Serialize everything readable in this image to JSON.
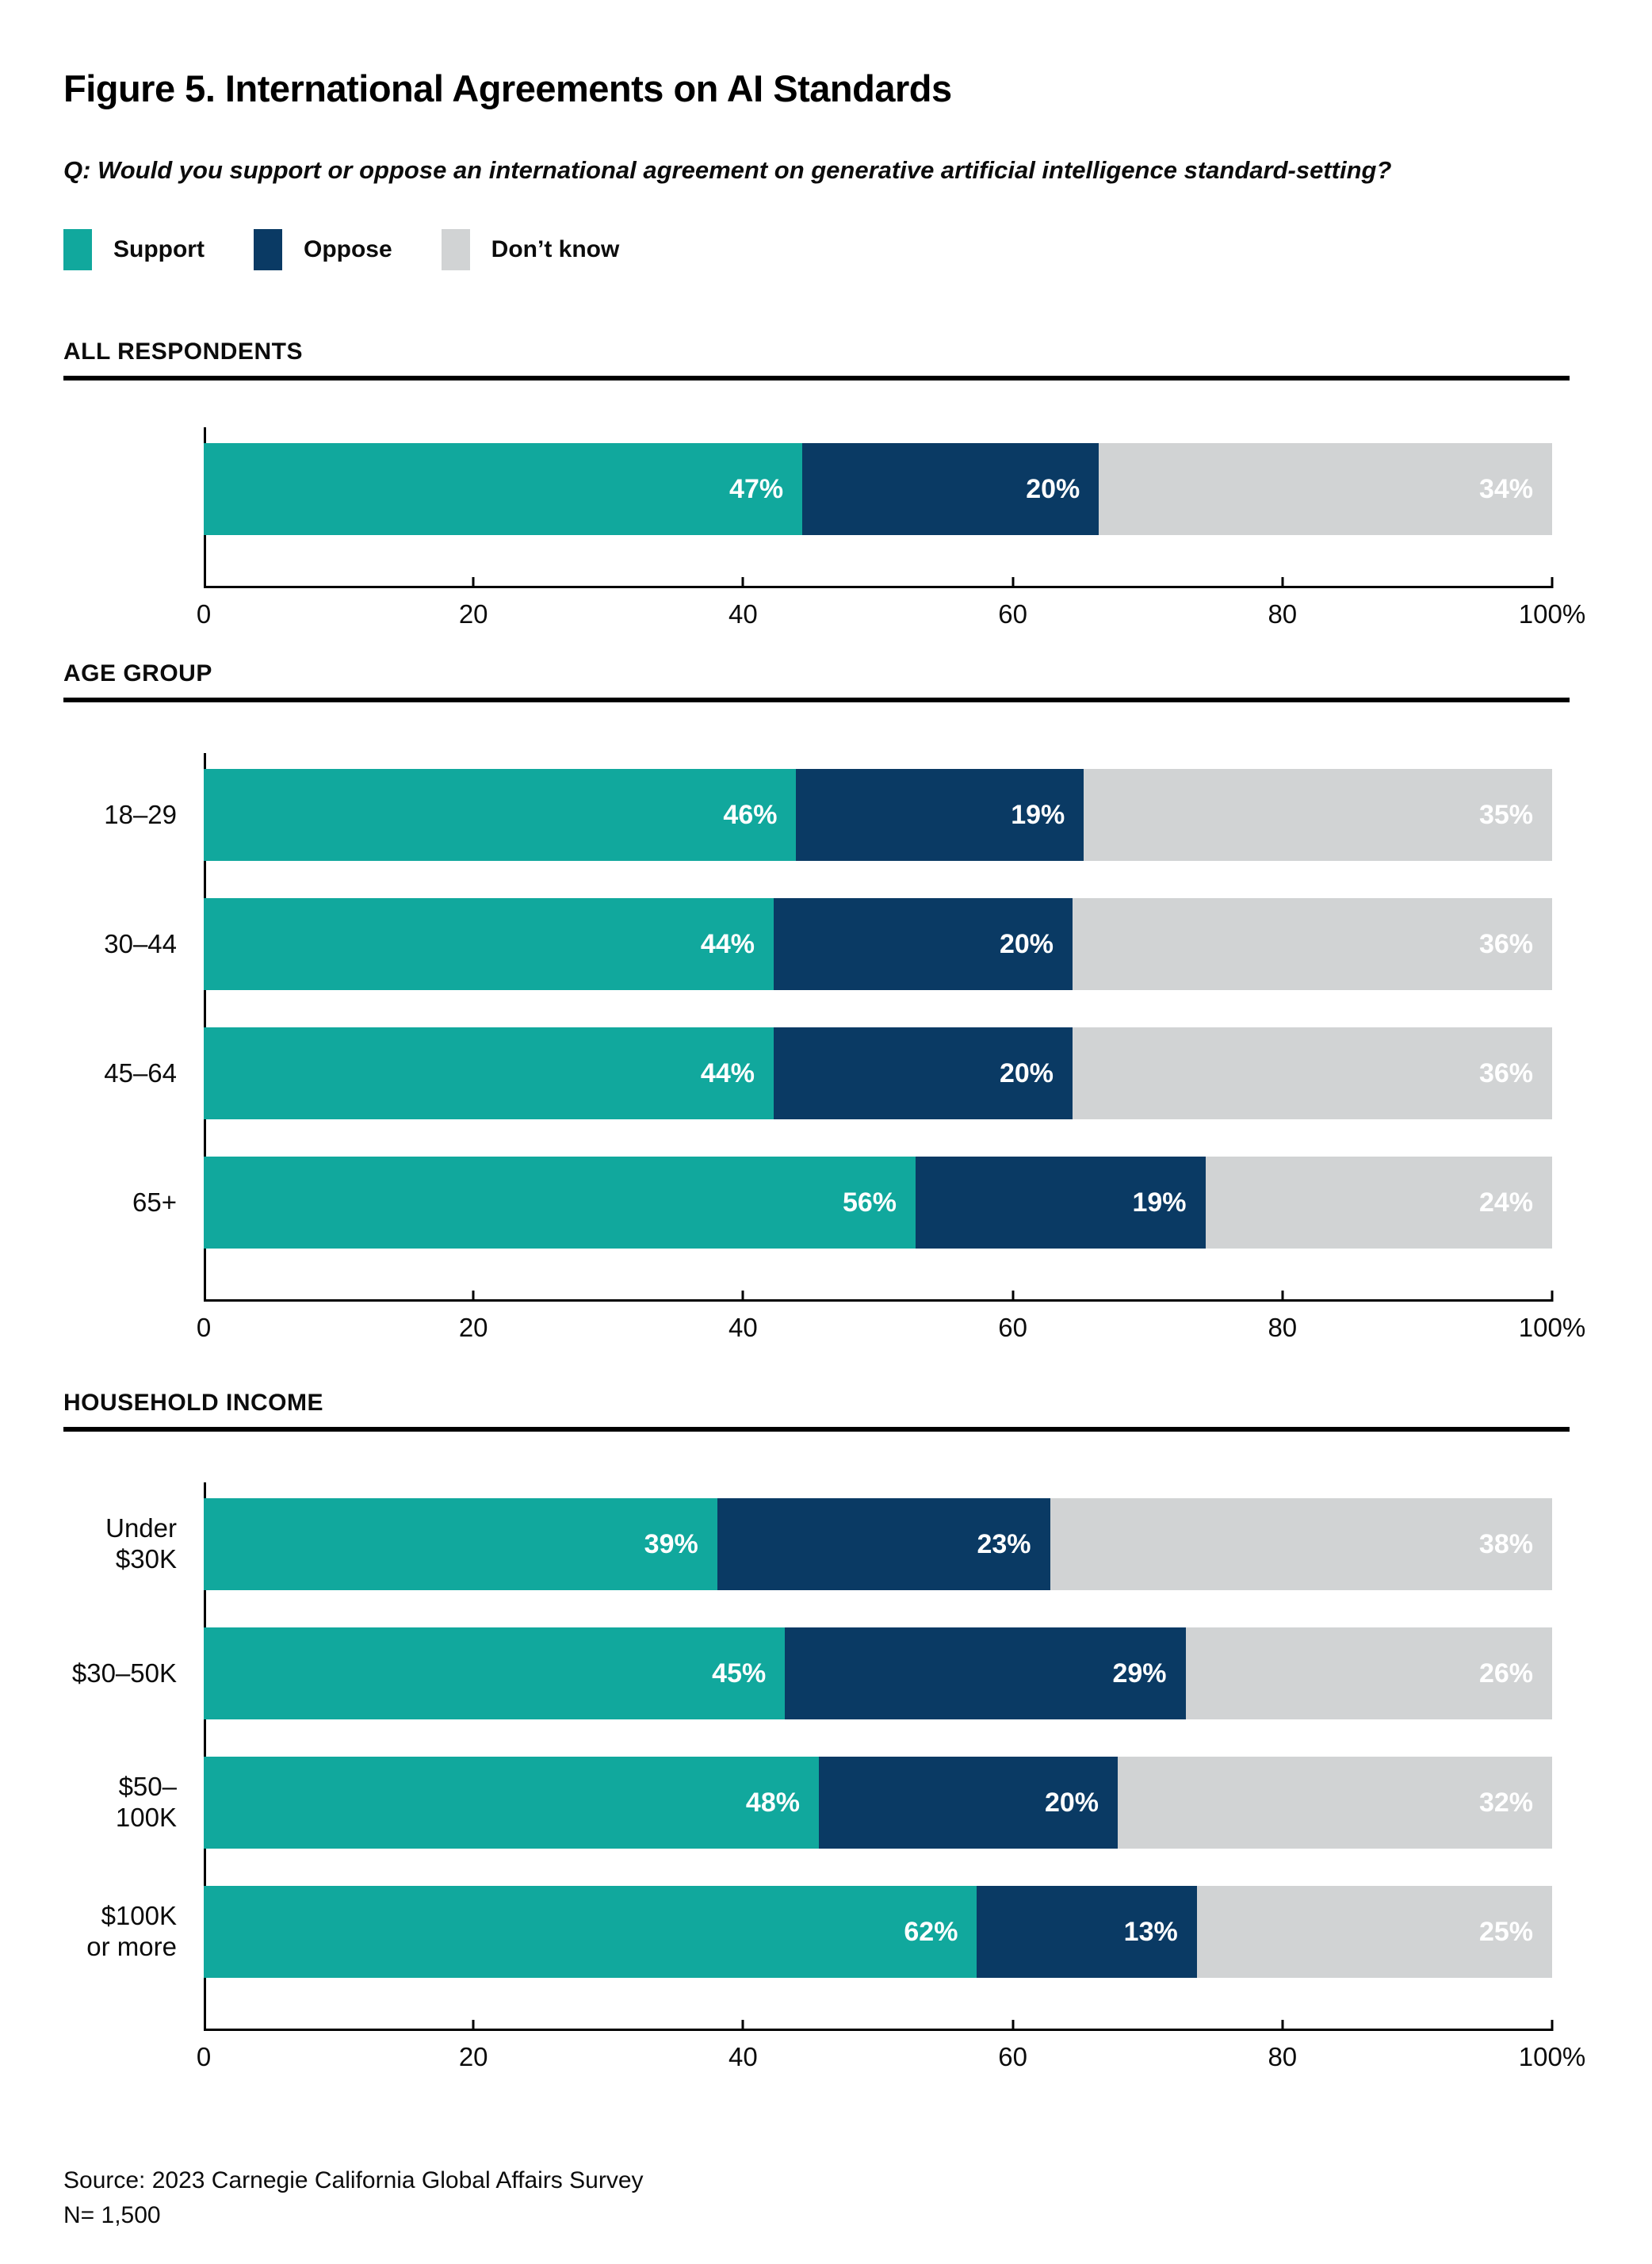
{
  "figure": {
    "title": "Figure 5. International Agreements on AI Standards",
    "question": "Q: Would you support or oppose an international agreement on generative artificial intelligence standard-setting?",
    "source_line1": "Source: 2023 Carnegie California Global Affairs Survey",
    "source_line2": "N= 1,500"
  },
  "legend": [
    {
      "label": "Support",
      "color": "#11A89D"
    },
    {
      "label": "Oppose",
      "color": "#0A3A64"
    },
    {
      "label": "Don’t know",
      "color": "#D1D3D4"
    }
  ],
  "axis": {
    "xlim": [
      0,
      100
    ],
    "tick_labels": [
      "0",
      "20",
      "40",
      "60",
      "80",
      "100%"
    ]
  },
  "chart_data": [
    {
      "type": "bar",
      "orientation": "horizontal",
      "stacked": true,
      "section": "ALL RESPONDENTS",
      "categories": [
        ""
      ],
      "series": [
        {
          "name": "Support",
          "values": [
            47
          ]
        },
        {
          "name": "Oppose",
          "values": [
            20
          ]
        },
        {
          "name": "Don't know",
          "values": [
            34
          ]
        }
      ],
      "value_suffix": "%",
      "xlim": [
        0,
        100
      ],
      "tick_labels": [
        "0",
        "20",
        "40",
        "60",
        "80",
        "100%"
      ]
    },
    {
      "type": "bar",
      "orientation": "horizontal",
      "stacked": true,
      "section": "AGE GROUP",
      "categories": [
        "18–29",
        "30–44",
        "45–64",
        "65+"
      ],
      "series": [
        {
          "name": "Support",
          "values": [
            46,
            44,
            44,
            56
          ]
        },
        {
          "name": "Oppose",
          "values": [
            19,
            20,
            20,
            19
          ]
        },
        {
          "name": "Don't know",
          "values": [
            35,
            36,
            36,
            24
          ]
        }
      ],
      "value_suffix": "%",
      "xlim": [
        0,
        100
      ],
      "tick_labels": [
        "0",
        "20",
        "40",
        "60",
        "80",
        "100%"
      ]
    },
    {
      "type": "bar",
      "orientation": "horizontal",
      "stacked": true,
      "section": "HOUSEHOLD INCOME",
      "categories": [
        "Under $30K",
        "$30–50K",
        "$50–100K",
        "$100K\nor more"
      ],
      "series": [
        {
          "name": "Support",
          "values": [
            39,
            45,
            48,
            62
          ]
        },
        {
          "name": "Oppose",
          "values": [
            23,
            29,
            20,
            13
          ]
        },
        {
          "name": "Don't know",
          "values": [
            38,
            26,
            32,
            25
          ]
        }
      ],
      "value_suffix": "%",
      "xlim": [
        0,
        100
      ],
      "tick_labels": [
        "0",
        "20",
        "40",
        "60",
        "80",
        "100%"
      ]
    }
  ]
}
